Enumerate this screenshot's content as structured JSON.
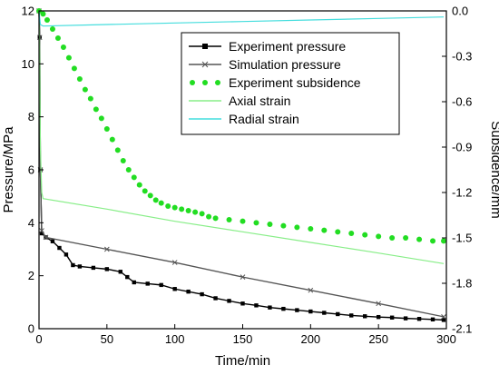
{
  "chart_data": {
    "type": "line",
    "xlabel": "Time/min",
    "ylabel_left": "Pressure/MPa",
    "ylabel_right": "Subsidence/mm",
    "xlim": [
      0,
      300
    ],
    "ylim_left": [
      0,
      12
    ],
    "ylim_right": [
      -2.1,
      0.0
    ],
    "x_ticks": [
      "0",
      "50",
      "100",
      "150",
      "200",
      "250",
      "300"
    ],
    "y_left_ticks": [
      "0",
      "2",
      "4",
      "6",
      "8",
      "10",
      "12"
    ],
    "y_right_ticks": [
      "-2.1",
      "-1.8",
      "-1.5",
      "-1.2",
      "-0.9",
      "-0.6",
      "-0.3",
      "0.0"
    ],
    "grid": false,
    "legend_position": "top-right",
    "series": [
      {
        "name": "Experiment pressure",
        "axis": "left",
        "style": "line-square",
        "color": "#000000",
        "points": [
          [
            0,
            12.0
          ],
          [
            0.5,
            11.0
          ],
          [
            1,
            6.0
          ],
          [
            2,
            3.6
          ],
          [
            5,
            3.45
          ],
          [
            10,
            3.3
          ],
          [
            15,
            3.05
          ],
          [
            20,
            2.8
          ],
          [
            25,
            2.4
          ],
          [
            30,
            2.35
          ],
          [
            40,
            2.3
          ],
          [
            50,
            2.25
          ],
          [
            60,
            2.15
          ],
          [
            65,
            1.95
          ],
          [
            70,
            1.75
          ],
          [
            80,
            1.7
          ],
          [
            90,
            1.65
          ],
          [
            100,
            1.5
          ],
          [
            110,
            1.4
          ],
          [
            120,
            1.3
          ],
          [
            130,
            1.15
          ],
          [
            140,
            1.05
          ],
          [
            150,
            0.95
          ],
          [
            160,
            0.88
          ],
          [
            170,
            0.8
          ],
          [
            180,
            0.75
          ],
          [
            190,
            0.7
          ],
          [
            200,
            0.65
          ],
          [
            210,
            0.6
          ],
          [
            220,
            0.55
          ],
          [
            230,
            0.5
          ],
          [
            240,
            0.47
          ],
          [
            250,
            0.44
          ],
          [
            260,
            0.42
          ],
          [
            270,
            0.39
          ],
          [
            280,
            0.37
          ],
          [
            290,
            0.35
          ],
          [
            298,
            0.33
          ]
        ]
      },
      {
        "name": "Simulation pressure",
        "axis": "left",
        "style": "line-cross",
        "color": "#555555",
        "points": [
          [
            0,
            12.0
          ],
          [
            0.5,
            11.0
          ],
          [
            1,
            6.0
          ],
          [
            2,
            3.7
          ],
          [
            5,
            3.45
          ],
          [
            50,
            3.0
          ],
          [
            100,
            2.5
          ],
          [
            150,
            1.95
          ],
          [
            200,
            1.45
          ],
          [
            250,
            0.95
          ],
          [
            298,
            0.45
          ]
        ]
      },
      {
        "name": "Experiment subsidence",
        "axis": "right",
        "style": "dots",
        "color": "#22dd22",
        "points": [
          [
            0,
            0.0
          ],
          [
            3,
            -0.02
          ],
          [
            6,
            -0.06
          ],
          [
            10,
            -0.12
          ],
          [
            14,
            -0.18
          ],
          [
            18,
            -0.24
          ],
          [
            22,
            -0.31
          ],
          [
            26,
            -0.38
          ],
          [
            30,
            -0.45
          ],
          [
            34,
            -0.52
          ],
          [
            38,
            -0.58
          ],
          [
            42,
            -0.65
          ],
          [
            46,
            -0.71
          ],
          [
            50,
            -0.78
          ],
          [
            54,
            -0.85
          ],
          [
            58,
            -0.92
          ],
          [
            62,
            -0.99
          ],
          [
            66,
            -1.05
          ],
          [
            70,
            -1.1
          ],
          [
            74,
            -1.15
          ],
          [
            78,
            -1.19
          ],
          [
            82,
            -1.22
          ],
          [
            86,
            -1.25
          ],
          [
            90,
            -1.27
          ],
          [
            95,
            -1.29
          ],
          [
            100,
            -1.3
          ],
          [
            105,
            -1.31
          ],
          [
            110,
            -1.32
          ],
          [
            115,
            -1.33
          ],
          [
            120,
            -1.34
          ],
          [
            125,
            -1.36
          ],
          [
            130,
            -1.37
          ],
          [
            140,
            -1.38
          ],
          [
            150,
            -1.39
          ],
          [
            160,
            -1.4
          ],
          [
            170,
            -1.41
          ],
          [
            180,
            -1.42
          ],
          [
            190,
            -1.43
          ],
          [
            200,
            -1.44
          ],
          [
            210,
            -1.45
          ],
          [
            220,
            -1.46
          ],
          [
            230,
            -1.47
          ],
          [
            240,
            -1.48
          ],
          [
            250,
            -1.49
          ],
          [
            260,
            -1.5
          ],
          [
            270,
            -1.5
          ],
          [
            280,
            -1.51
          ],
          [
            290,
            -1.52
          ],
          [
            298,
            -1.52
          ]
        ]
      },
      {
        "name": "Axial strain",
        "axis": "right",
        "style": "line",
        "color": "#88ee88",
        "points": [
          [
            0,
            0.0
          ],
          [
            0.5,
            -0.3
          ],
          [
            1,
            -0.9
          ],
          [
            2,
            -1.2
          ],
          [
            3,
            -1.24
          ],
          [
            50,
            -1.31
          ],
          [
            100,
            -1.39
          ],
          [
            150,
            -1.46
          ],
          [
            200,
            -1.53
          ],
          [
            250,
            -1.6
          ],
          [
            298,
            -1.67
          ]
        ]
      },
      {
        "name": "Radial strain",
        "axis": "right",
        "style": "line",
        "color": "#44dddd",
        "points": [
          [
            0,
            0.0
          ],
          [
            1,
            -0.09
          ],
          [
            3,
            -0.1
          ],
          [
            50,
            -0.09
          ],
          [
            100,
            -0.08
          ],
          [
            150,
            -0.07
          ],
          [
            200,
            -0.06
          ],
          [
            250,
            -0.05
          ],
          [
            298,
            -0.04
          ]
        ]
      }
    ]
  }
}
